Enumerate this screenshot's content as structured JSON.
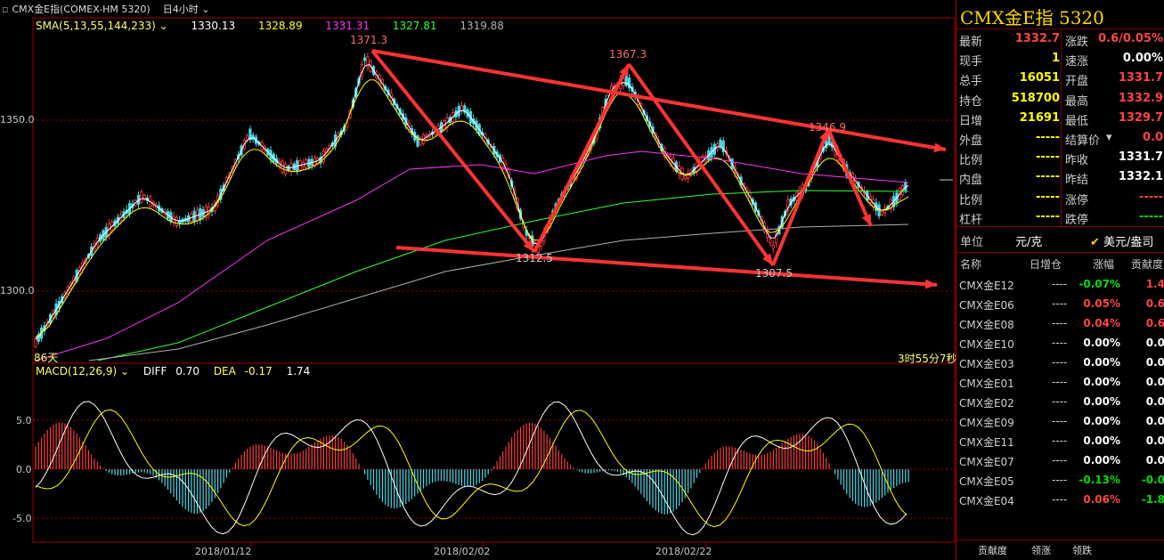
{
  "header": {
    "symbol_label": "CMX金E指(COMEX-HM 5320)",
    "period": "日4小时",
    "chevron": "chevron-down-icon"
  },
  "sma": {
    "label": "SMA(5,13,55,144,233)",
    "values": [
      "1330.13",
      "1328.89",
      "1331.31",
      "1327.81",
      "1319.88"
    ],
    "colors": [
      "#ffffff",
      "#ffff00",
      "#ff33ff",
      "#00ff00",
      "#b0b0b0"
    ]
  },
  "price_axis": {
    "ticks": [
      "1350.0",
      "1300.0"
    ],
    "high_label": "1371.3",
    "peak2_label": "1367.3",
    "peak3_label": "1346.9",
    "low1_label": "1312.5",
    "low2_label": "1307.5",
    "bottom_left_label": "86天",
    "countdown": "3时55分7秒"
  },
  "macd": {
    "label": "MACD(12,26,9)",
    "diff_label": "DIFF",
    "diff_value": "0.70",
    "dea_label": "DEA",
    "dea_value": "-0.17",
    "macd_value": "1.74",
    "ticks": [
      "5.0",
      "0.0",
      "-5.0"
    ]
  },
  "x_axis": {
    "dates": [
      "2018/01/12",
      "2018/02/02",
      "2018/02/22"
    ]
  },
  "quote_panel": {
    "title": "CMX金E指  5320",
    "left": [
      {
        "label": "最新",
        "value": "1332.7",
        "color": "red"
      },
      {
        "label": "现手",
        "value": "1",
        "color": "yellow"
      },
      {
        "label": "总手",
        "value": "16051",
        "color": "yellow"
      },
      {
        "label": "持仓",
        "value": "518700",
        "color": "yellow"
      },
      {
        "label": "日增",
        "value": "21691",
        "color": "yellow"
      },
      {
        "label": "外盘",
        "value": "-----",
        "color": "yellow"
      },
      {
        "label": "比例",
        "value": "-----",
        "color": "yellow"
      },
      {
        "label": "内盘",
        "value": "-----",
        "color": "yellow"
      },
      {
        "label": "比例",
        "value": "-----",
        "color": "yellow"
      },
      {
        "label": "杠杆",
        "value": "-----",
        "color": "yellow"
      }
    ],
    "right": [
      {
        "label": "涨跌",
        "value": "0.6/0.05%",
        "color": "red"
      },
      {
        "label": "速涨",
        "value": "0.00%",
        "color": "white"
      },
      {
        "label": "开盘",
        "value": "1331.7",
        "color": "red"
      },
      {
        "label": "最高",
        "value": "1332.9",
        "color": "red"
      },
      {
        "label": "最低",
        "value": "1329.7",
        "color": "red"
      },
      {
        "label": "结算价",
        "value": "0.0",
        "color": "red"
      },
      {
        "label": "昨收",
        "value": "1331.7",
        "color": "white"
      },
      {
        "label": "昨结",
        "value": "1332.1",
        "color": "white"
      },
      {
        "label": "涨停",
        "value": "-----",
        "color": "red"
      },
      {
        "label": "跌停",
        "value": "-----",
        "color": "green"
      }
    ],
    "unit_label": "单位",
    "unit_value": "元/克",
    "unit_alt": "美元/盎司"
  },
  "contracts": {
    "headers": [
      "名称",
      "日增仓",
      "涨幅",
      "贡献度"
    ],
    "rows": [
      {
        "name": "CMX金E12",
        "add": "----",
        "chg": "-0.07%",
        "contrib": "1.4",
        "color": "green",
        "ccolor": "red"
      },
      {
        "name": "CMX金E06",
        "add": "----",
        "chg": "0.05%",
        "contrib": "0.6",
        "color": "red",
        "ccolor": "red"
      },
      {
        "name": "CMX金E08",
        "add": "----",
        "chg": "0.04%",
        "contrib": "0.6",
        "color": "red",
        "ccolor": "red"
      },
      {
        "name": "CMX金E10",
        "add": "----",
        "chg": "0.00%",
        "contrib": "0.0",
        "color": "white",
        "ccolor": "white"
      },
      {
        "name": "CMX金E03",
        "add": "----",
        "chg": "0.00%",
        "contrib": "0.0",
        "color": "white",
        "ccolor": "white"
      },
      {
        "name": "CMX金E01",
        "add": "----",
        "chg": "0.00%",
        "contrib": "0.0",
        "color": "white",
        "ccolor": "white"
      },
      {
        "name": "CMX金E02",
        "add": "----",
        "chg": "0.00%",
        "contrib": "0.0",
        "color": "white",
        "ccolor": "white"
      },
      {
        "name": "CMX金E09",
        "add": "----",
        "chg": "0.00%",
        "contrib": "0.0",
        "color": "white",
        "ccolor": "white"
      },
      {
        "name": "CMX金E11",
        "add": "----",
        "chg": "0.00%",
        "contrib": "0.0",
        "color": "white",
        "ccolor": "white"
      },
      {
        "name": "CMX金E07",
        "add": "----",
        "chg": "0.00%",
        "contrib": "0.0",
        "color": "white",
        "ccolor": "white"
      },
      {
        "name": "CMX金E05",
        "add": "----",
        "chg": "-0.13%",
        "contrib": "-0.0",
        "color": "green",
        "ccolor": "green"
      },
      {
        "name": "CMX金E04",
        "add": "----",
        "chg": "0.06%",
        "contrib": "-1.8",
        "color": "red",
        "ccolor": "green"
      }
    ],
    "tabs": [
      "贡献度",
      "领涨",
      "领跌"
    ]
  }
}
